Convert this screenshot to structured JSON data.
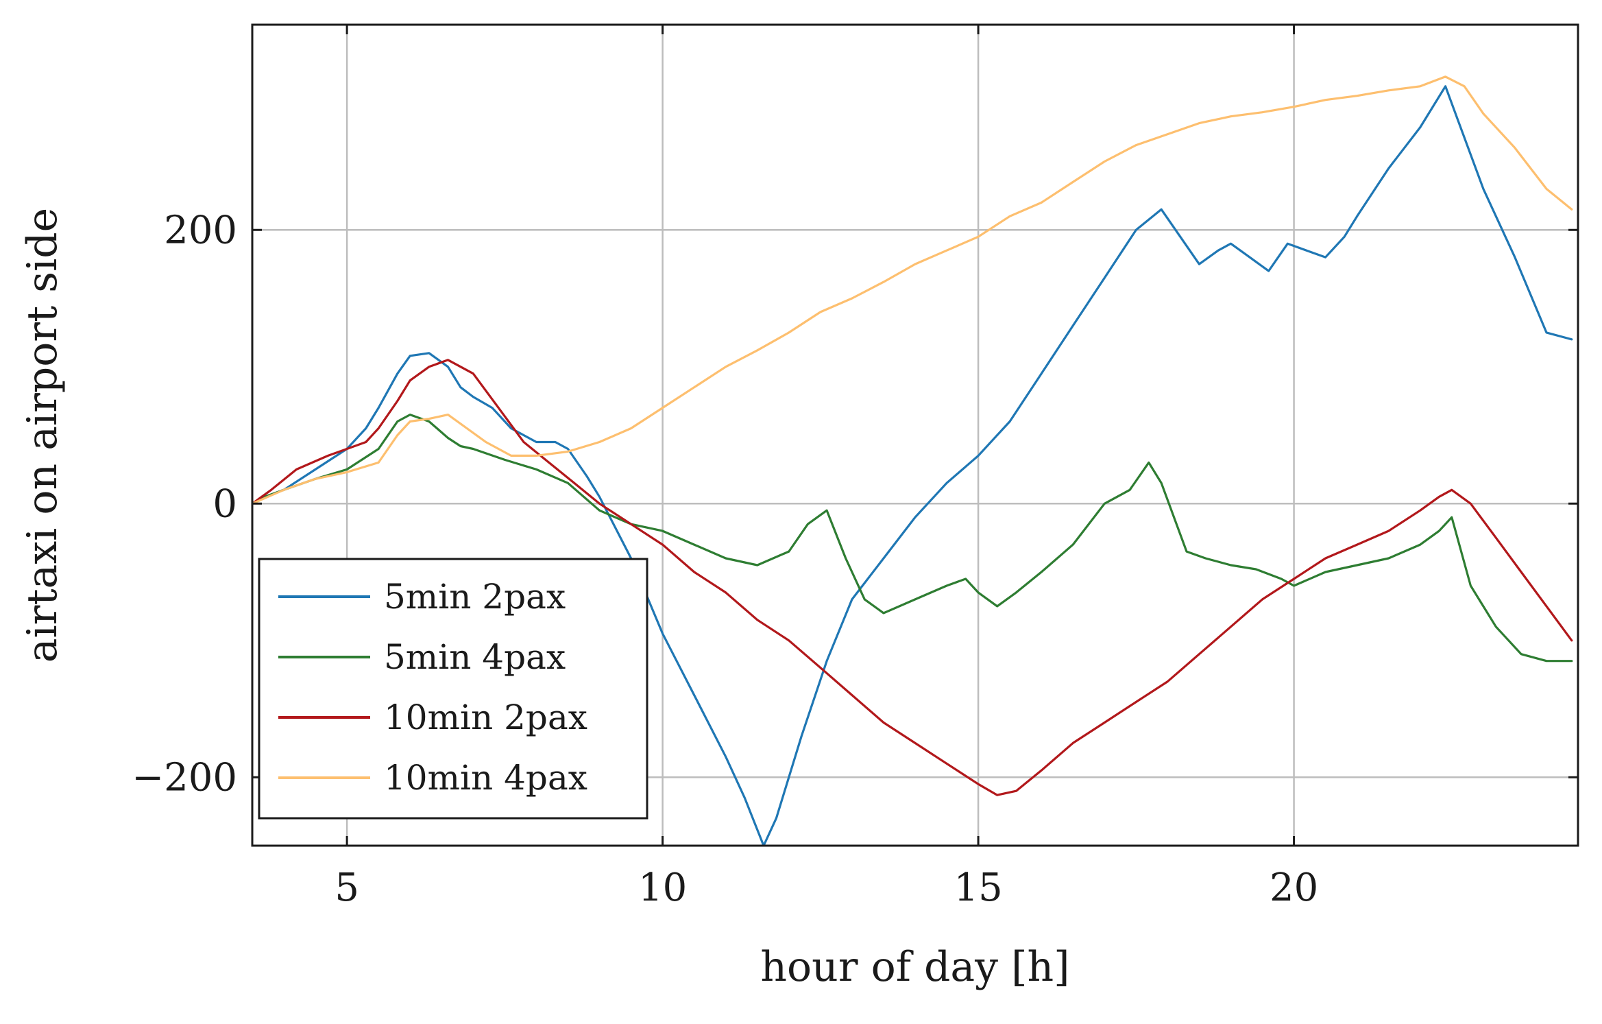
{
  "chart_data": {
    "type": "line",
    "title": "",
    "xlabel": "hour of day [h]",
    "ylabel": "airtaxi on airport side",
    "xlim": [
      3.5,
      24.5
    ],
    "ylim": [
      -250,
      350
    ],
    "xticks": [
      5,
      10,
      15,
      20
    ],
    "yticks": [
      -200,
      0,
      200
    ],
    "ytick_labels": [
      "−200",
      "0",
      "200"
    ],
    "grid": true,
    "legend_position": "lower-left",
    "series": [
      {
        "name": "5min 2pax",
        "color": "#1f77b4",
        "x": [
          3.5,
          3.7,
          4.0,
          4.5,
          5.0,
          5.3,
          5.5,
          5.8,
          6.0,
          6.3,
          6.6,
          6.8,
          7.0,
          7.3,
          7.6,
          8.0,
          8.3,
          8.5,
          8.8,
          9.0,
          9.5,
          10.0,
          10.5,
          11.0,
          11.3,
          11.6,
          11.8,
          12.2,
          12.6,
          13.0,
          13.5,
          14.0,
          14.5,
          15.0,
          15.5,
          16.0,
          16.5,
          17.0,
          17.5,
          17.9,
          18.2,
          18.5,
          18.8,
          19.0,
          19.3,
          19.6,
          19.9,
          20.2,
          20.5,
          20.8,
          21.0,
          21.5,
          22.0,
          22.4,
          22.6,
          23.0,
          23.5,
          24.0,
          24.4
        ],
        "y": [
          0,
          5,
          10,
          25,
          40,
          55,
          70,
          95,
          108,
          110,
          100,
          85,
          78,
          70,
          55,
          45,
          45,
          40,
          20,
          5,
          -40,
          -95,
          -140,
          -185,
          -215,
          -250,
          -230,
          -170,
          -115,
          -70,
          -40,
          -10,
          15,
          35,
          60,
          95,
          130,
          165,
          200,
          215,
          195,
          175,
          185,
          190,
          180,
          170,
          190,
          185,
          180,
          195,
          210,
          245,
          275,
          305,
          280,
          230,
          180,
          125,
          120
        ]
      },
      {
        "name": "5min 4pax",
        "color": "#2e7d32",
        "x": [
          3.5,
          3.7,
          4.0,
          4.5,
          5.0,
          5.5,
          5.8,
          6.0,
          6.3,
          6.6,
          6.8,
          7.0,
          7.5,
          8.0,
          8.5,
          9.0,
          9.5,
          10.0,
          10.5,
          11.0,
          11.5,
          12.0,
          12.3,
          12.6,
          12.9,
          13.2,
          13.5,
          14.0,
          14.5,
          14.8,
          15.0,
          15.3,
          15.6,
          16.0,
          16.5,
          17.0,
          17.4,
          17.7,
          17.9,
          18.3,
          18.6,
          19.0,
          19.4,
          19.8,
          20.0,
          20.5,
          21.0,
          21.5,
          22.0,
          22.3,
          22.5,
          22.8,
          23.2,
          23.6,
          24.0,
          24.4
        ],
        "y": [
          0,
          5,
          10,
          18,
          25,
          40,
          60,
          65,
          60,
          48,
          42,
          40,
          32,
          25,
          15,
          -5,
          -15,
          -20,
          -30,
          -40,
          -45,
          -35,
          -15,
          -5,
          -40,
          -70,
          -80,
          -70,
          -60,
          -55,
          -65,
          -75,
          -65,
          -50,
          -30,
          0,
          10,
          30,
          15,
          -35,
          -40,
          -45,
          -48,
          -55,
          -60,
          -50,
          -45,
          -40,
          -30,
          -20,
          -10,
          -60,
          -90,
          -110,
          -115,
          -115
        ]
      },
      {
        "name": "10min 2pax",
        "color": "#b2181b",
        "x": [
          3.5,
          3.8,
          4.2,
          4.7,
          5.0,
          5.3,
          5.5,
          5.8,
          6.0,
          6.3,
          6.6,
          7.0,
          7.4,
          7.8,
          8.2,
          8.6,
          9.0,
          9.5,
          10.0,
          10.5,
          11.0,
          11.5,
          12.0,
          12.5,
          13.0,
          13.5,
          14.0,
          14.5,
          15.0,
          15.3,
          15.6,
          16.0,
          16.5,
          17.0,
          17.5,
          18.0,
          18.5,
          19.0,
          19.5,
          20.0,
          20.5,
          21.0,
          21.5,
          22.0,
          22.3,
          22.5,
          22.8,
          23.2,
          23.6,
          24.0,
          24.4
        ],
        "y": [
          0,
          10,
          25,
          35,
          40,
          45,
          55,
          75,
          90,
          100,
          105,
          95,
          70,
          45,
          30,
          15,
          0,
          -15,
          -30,
          -50,
          -65,
          -85,
          -100,
          -120,
          -140,
          -160,
          -175,
          -190,
          -205,
          -213,
          -210,
          -195,
          -175,
          -160,
          -145,
          -130,
          -110,
          -90,
          -70,
          -55,
          -40,
          -30,
          -20,
          -5,
          5,
          10,
          0,
          -25,
          -50,
          -75,
          -100
        ]
      },
      {
        "name": "10min 4pax",
        "color": "#fdbf6f",
        "x": [
          3.5,
          4.0,
          4.5,
          5.0,
          5.5,
          5.8,
          6.0,
          6.3,
          6.6,
          6.9,
          7.2,
          7.6,
          8.0,
          8.5,
          9.0,
          9.5,
          10.0,
          10.5,
          11.0,
          11.5,
          12.0,
          12.5,
          13.0,
          13.5,
          14.0,
          14.5,
          15.0,
          15.5,
          16.0,
          16.5,
          17.0,
          17.5,
          18.0,
          18.5,
          19.0,
          19.5,
          20.0,
          20.5,
          21.0,
          21.5,
          22.0,
          22.4,
          22.7,
          23.0,
          23.5,
          24.0,
          24.4
        ],
        "y": [
          0,
          10,
          18,
          23,
          30,
          50,
          60,
          62,
          65,
          55,
          45,
          35,
          35,
          38,
          45,
          55,
          70,
          85,
          100,
          112,
          125,
          140,
          150,
          162,
          175,
          185,
          195,
          210,
          220,
          235,
          250,
          262,
          270,
          278,
          283,
          286,
          290,
          295,
          298,
          302,
          305,
          312,
          305,
          285,
          260,
          230,
          215
        ]
      }
    ]
  }
}
